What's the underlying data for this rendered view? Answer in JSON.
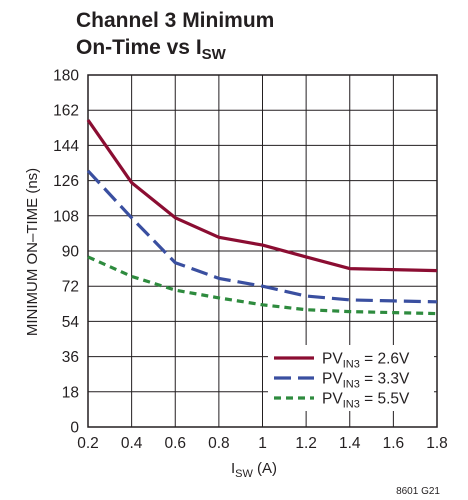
{
  "chart_data": {
    "type": "line",
    "title_line1": "Channel 3 Minimum",
    "title_line2_main": "On-Time vs I",
    "title_line2_sub": "SW",
    "xlabel_main": "I",
    "xlabel_sub": "SW",
    "xlabel_unit": " (A)",
    "ylabel": "MINIMUM ON–TIME (ns)",
    "xlim": [
      0.2,
      1.8
    ],
    "ylim": [
      0,
      180
    ],
    "x_ticks": [
      "0.2",
      "0.4",
      "0.6",
      "0.8",
      "1",
      "1.2",
      "1.4",
      "1.6",
      "1.8"
    ],
    "y_ticks": [
      "0",
      "18",
      "36",
      "54",
      "72",
      "90",
      "108",
      "126",
      "144",
      "162",
      "180"
    ],
    "grid": true,
    "legend_position": "bottom-right",
    "x": [
      0.2,
      0.4,
      0.6,
      0.8,
      1.0,
      1.2,
      1.4,
      1.6,
      1.8
    ],
    "series": [
      {
        "name_main": "PV",
        "name_sub": "IN3",
        "name_rest": " = 2.6V",
        "values": [
          157,
          125,
          107,
          97,
          93,
          87,
          81,
          80.5,
          80
        ],
        "color": "#8b0d32",
        "dash": "solid"
      },
      {
        "name_main": "PV",
        "name_sub": "IN3",
        "name_rest": " = 3.3V",
        "values": [
          131,
          107,
          84,
          76,
          72,
          67,
          65,
          64.5,
          64
        ],
        "color": "#3a4fa0",
        "dash": "long-dash"
      },
      {
        "name_main": "PV",
        "name_sub": "IN3",
        "name_rest": " = 5.5V",
        "values": [
          87,
          77,
          70,
          66,
          62.5,
          60,
          59,
          58.5,
          58
        ],
        "color": "#2e8b3e",
        "dash": "short-dash"
      }
    ],
    "note": "8601 G21"
  }
}
